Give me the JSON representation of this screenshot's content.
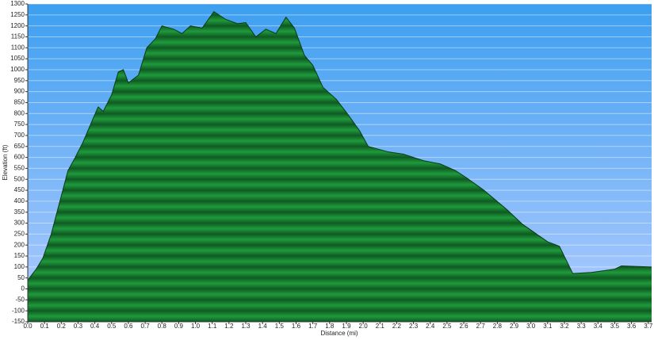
{
  "chart_data": {
    "type": "area",
    "xlabel": "Distance   (mi)",
    "ylabel": "Elevation (ft)",
    "x": [
      0,
      0.05,
      0.09,
      0.14,
      0.19,
      0.24,
      0.28,
      0.33,
      0.38,
      0.42,
      0.45,
      0.5,
      0.54,
      0.57,
      0.6,
      0.66,
      0.71,
      0.76,
      0.8,
      0.87,
      0.92,
      0.97,
      1.04,
      1.11,
      1.18,
      1.25,
      1.3,
      1.36,
      1.42,
      1.48,
      1.54,
      1.59,
      1.65,
      1.7,
      1.76,
      1.84,
      1.91,
      1.98,
      2.03,
      2.15,
      2.24,
      2.36,
      2.46,
      2.55,
      2.62,
      2.72,
      2.86,
      2.95,
      3.1,
      3.17,
      3.25,
      3.36,
      3.5,
      3.54,
      3.72
    ],
    "values": [
      40,
      90,
      140,
      250,
      395,
      540,
      595,
      670,
      760,
      830,
      810,
      885,
      990,
      1000,
      940,
      975,
      1100,
      1140,
      1200,
      1185,
      1165,
      1200,
      1190,
      1265,
      1230,
      1210,
      1215,
      1150,
      1185,
      1165,
      1240,
      1190,
      1065,
      1020,
      920,
      865,
      795,
      720,
      650,
      625,
      615,
      585,
      570,
      540,
      505,
      450,
      360,
      295,
      215,
      195,
      70,
      75,
      90,
      105,
      100
    ],
    "color": "#1f9a3c",
    "xlim": [
      0,
      3.72
    ],
    "ylim": [
      -150,
      1300
    ],
    "xticks": [
      {
        "value": 0,
        "label": "0.0"
      },
      0.1,
      0.2,
      0.3,
      0.4,
      0.5,
      0.6,
      0.7,
      0.8,
      0.9,
      {
        "value": 1,
        "label": "1.0"
      },
      1.1,
      1.2,
      1.3,
      1.4,
      1.5,
      1.6,
      1.7,
      1.8,
      1.9,
      {
        "value": 2,
        "label": "2.0"
      },
      2.1,
      2.2,
      2.3,
      2.4,
      2.5,
      2.6,
      2.7,
      2.8,
      2.9,
      {
        "value": 3,
        "label": "3.0"
      },
      3.1,
      3.2,
      3.3,
      3.4,
      3.5,
      3.6,
      3.7
    ],
    "yticks": [
      -150,
      -100,
      -50,
      0,
      50,
      100,
      150,
      200,
      250,
      300,
      350,
      400,
      450,
      500,
      550,
      600,
      650,
      700,
      750,
      800,
      850,
      900,
      950,
      1000,
      1050,
      1100,
      1150,
      1200,
      1250,
      1300
    ],
    "grid": true
  }
}
